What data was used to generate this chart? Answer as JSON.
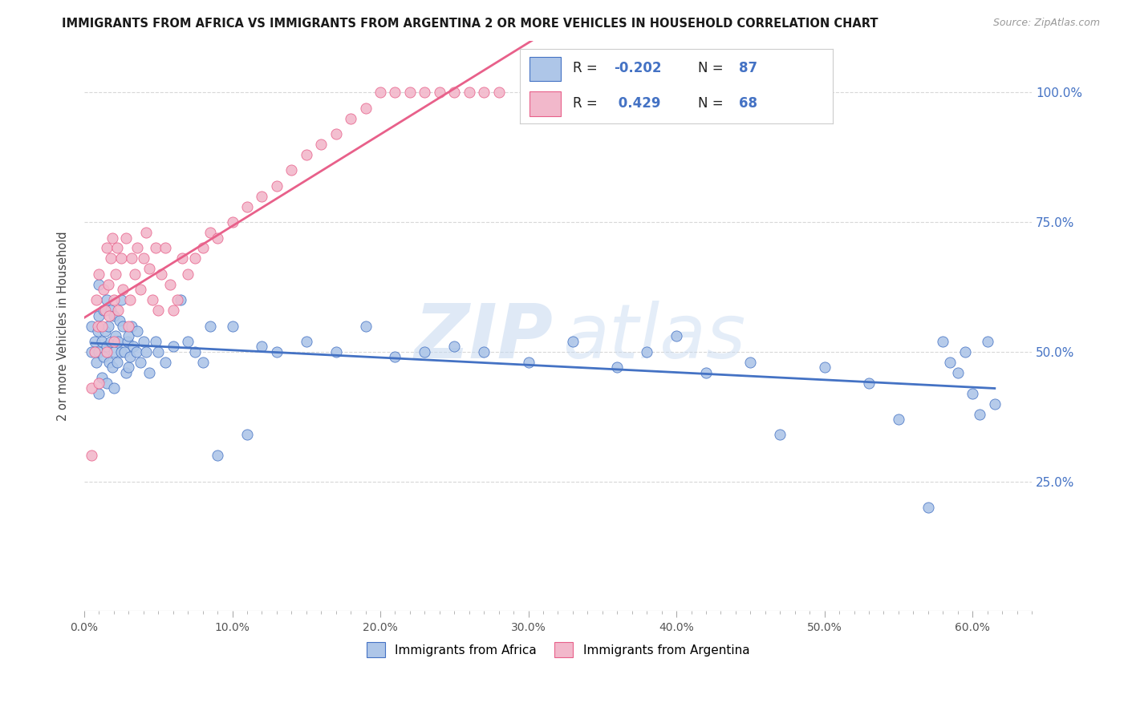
{
  "title": "IMMIGRANTS FROM AFRICA VS IMMIGRANTS FROM ARGENTINA 2 OR MORE VEHICLES IN HOUSEHOLD CORRELATION CHART",
  "source": "Source: ZipAtlas.com",
  "ylabel": "2 or more Vehicles in Household",
  "xlim": [
    0.0,
    0.62
  ],
  "ylim": [
    0.0,
    1.1
  ],
  "xtick_labels": [
    "0.0%",
    "",
    "",
    "",
    "",
    "",
    "",
    "",
    "",
    "",
    "10.0%",
    "",
    "",
    "",
    "",
    "",
    "",
    "",
    "",
    "",
    "20.0%",
    "",
    "",
    "",
    "",
    "",
    "",
    "",
    "",
    "",
    "30.0%",
    "",
    "",
    "",
    "",
    "",
    "",
    "",
    "",
    "",
    "40.0%",
    "",
    "",
    "",
    "",
    "",
    "",
    "",
    "",
    "",
    "50.0%",
    "",
    "",
    "",
    "",
    "",
    "",
    "",
    "",
    "",
    "60.0%"
  ],
  "xtick_vals": [
    0.0,
    0.01,
    0.02,
    0.03,
    0.04,
    0.05,
    0.06,
    0.07,
    0.08,
    0.09,
    0.1,
    0.11,
    0.12,
    0.13,
    0.14,
    0.15,
    0.16,
    0.17,
    0.18,
    0.19,
    0.2,
    0.21,
    0.22,
    0.23,
    0.24,
    0.25,
    0.26,
    0.27,
    0.28,
    0.29,
    0.3,
    0.31,
    0.32,
    0.33,
    0.34,
    0.35,
    0.36,
    0.37,
    0.38,
    0.39,
    0.4,
    0.41,
    0.42,
    0.43,
    0.44,
    0.45,
    0.46,
    0.47,
    0.48,
    0.49,
    0.5,
    0.51,
    0.52,
    0.53,
    0.54,
    0.55,
    0.56,
    0.57,
    0.58,
    0.59,
    0.6
  ],
  "ytick_labels": [
    "25.0%",
    "50.0%",
    "75.0%",
    "100.0%"
  ],
  "ytick_vals": [
    0.25,
    0.5,
    0.75,
    1.0
  ],
  "legend_R_africa": "-0.202",
  "legend_N_africa": "87",
  "legend_R_argentina": "0.429",
  "legend_N_argentina": "68",
  "africa_color": "#aec6e8",
  "argentina_color": "#f2b8cb",
  "africa_line_color": "#4472c4",
  "argentina_line_color": "#e8608a",
  "watermark_zip": "ZIP",
  "watermark_atlas": "atlas",
  "africa_scatter_x": [
    0.005,
    0.005,
    0.007,
    0.008,
    0.009,
    0.01,
    0.01,
    0.01,
    0.01,
    0.012,
    0.012,
    0.013,
    0.013,
    0.014,
    0.015,
    0.015,
    0.015,
    0.016,
    0.017,
    0.018,
    0.018,
    0.019,
    0.02,
    0.02,
    0.02,
    0.021,
    0.022,
    0.023,
    0.024,
    0.025,
    0.025,
    0.026,
    0.027,
    0.028,
    0.029,
    0.03,
    0.03,
    0.031,
    0.032,
    0.033,
    0.035,
    0.036,
    0.038,
    0.04,
    0.042,
    0.044,
    0.048,
    0.05,
    0.055,
    0.06,
    0.065,
    0.07,
    0.075,
    0.08,
    0.085,
    0.09,
    0.1,
    0.11,
    0.12,
    0.13,
    0.15,
    0.17,
    0.19,
    0.21,
    0.23,
    0.25,
    0.27,
    0.3,
    0.33,
    0.36,
    0.38,
    0.4,
    0.42,
    0.45,
    0.47,
    0.5,
    0.53,
    0.55,
    0.57,
    0.58,
    0.585,
    0.59,
    0.595,
    0.6,
    0.605,
    0.61,
    0.615
  ],
  "africa_scatter_y": [
    0.5,
    0.55,
    0.52,
    0.48,
    0.54,
    0.42,
    0.5,
    0.57,
    0.63,
    0.45,
    0.52,
    0.49,
    0.58,
    0.54,
    0.44,
    0.51,
    0.6,
    0.55,
    0.48,
    0.52,
    0.58,
    0.47,
    0.43,
    0.5,
    0.57,
    0.53,
    0.48,
    0.52,
    0.56,
    0.5,
    0.6,
    0.55,
    0.5,
    0.46,
    0.52,
    0.47,
    0.53,
    0.49,
    0.55,
    0.51,
    0.5,
    0.54,
    0.48,
    0.52,
    0.5,
    0.46,
    0.52,
    0.5,
    0.48,
    0.51,
    0.6,
    0.52,
    0.5,
    0.48,
    0.55,
    0.3,
    0.55,
    0.34,
    0.51,
    0.5,
    0.52,
    0.5,
    0.55,
    0.49,
    0.5,
    0.51,
    0.5,
    0.48,
    0.52,
    0.47,
    0.5,
    0.53,
    0.46,
    0.48,
    0.34,
    0.47,
    0.44,
    0.37,
    0.2,
    0.52,
    0.48,
    0.46,
    0.5,
    0.42,
    0.38,
    0.52,
    0.4
  ],
  "argentina_scatter_x": [
    0.005,
    0.005,
    0.007,
    0.008,
    0.009,
    0.01,
    0.01,
    0.012,
    0.013,
    0.014,
    0.015,
    0.015,
    0.016,
    0.017,
    0.018,
    0.019,
    0.02,
    0.02,
    0.021,
    0.022,
    0.023,
    0.025,
    0.026,
    0.028,
    0.03,
    0.031,
    0.032,
    0.034,
    0.036,
    0.038,
    0.04,
    0.042,
    0.044,
    0.046,
    0.048,
    0.05,
    0.052,
    0.055,
    0.058,
    0.06,
    0.063,
    0.066,
    0.07,
    0.075,
    0.08,
    0.085,
    0.09,
    0.1,
    0.11,
    0.12,
    0.13,
    0.14,
    0.15,
    0.16,
    0.17,
    0.18,
    0.19,
    0.2,
    0.21,
    0.22,
    0.23,
    0.24,
    0.25,
    0.26,
    0.27,
    0.28,
    0.3,
    0.32
  ],
  "argentina_scatter_y": [
    0.3,
    0.43,
    0.5,
    0.6,
    0.55,
    0.44,
    0.65,
    0.55,
    0.62,
    0.58,
    0.5,
    0.7,
    0.63,
    0.57,
    0.68,
    0.72,
    0.52,
    0.6,
    0.65,
    0.7,
    0.58,
    0.68,
    0.62,
    0.72,
    0.55,
    0.6,
    0.68,
    0.65,
    0.7,
    0.62,
    0.68,
    0.73,
    0.66,
    0.6,
    0.7,
    0.58,
    0.65,
    0.7,
    0.63,
    0.58,
    0.6,
    0.68,
    0.65,
    0.68,
    0.7,
    0.73,
    0.72,
    0.75,
    0.78,
    0.8,
    0.82,
    0.85,
    0.88,
    0.9,
    0.92,
    0.95,
    0.97,
    1.0,
    1.0,
    1.0,
    1.0,
    1.0,
    1.0,
    1.0,
    1.0,
    1.0,
    1.0,
    1.0
  ],
  "background_color": "#ffffff",
  "grid_color": "#d8d8d8"
}
